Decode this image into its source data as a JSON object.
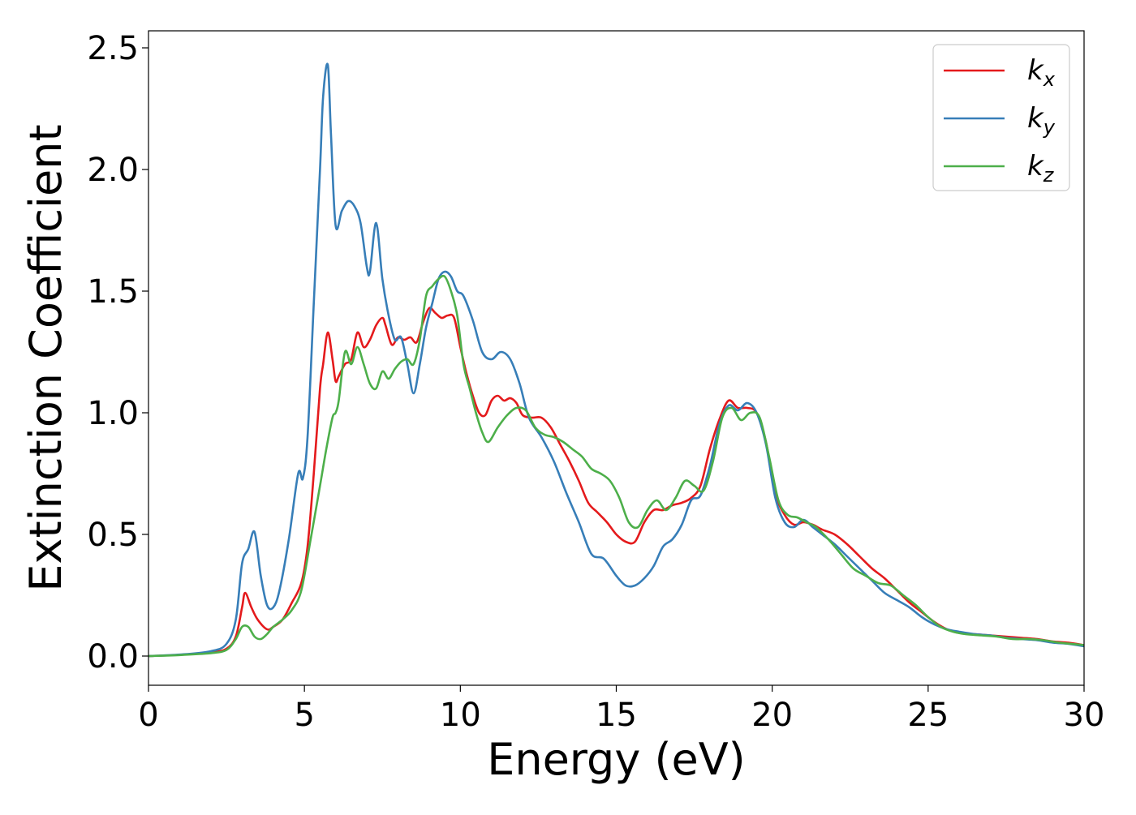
{
  "chart_data": {
    "type": "line",
    "title": "",
    "xlabel": "Energy (eV)",
    "ylabel": "Extinction Coefficient",
    "xlim": [
      0,
      30
    ],
    "ylim": [
      -0.12,
      2.57
    ],
    "xticks": [
      0,
      5,
      10,
      15,
      20,
      25,
      30
    ],
    "xtick_labels": [
      "0",
      "5",
      "10",
      "15",
      "20",
      "25",
      "30"
    ],
    "yticks": [
      0.0,
      0.5,
      1.0,
      1.5,
      2.0,
      2.5
    ],
    "ytick_labels": [
      "0.0",
      "0.5",
      "1.0",
      "1.5",
      "2.0",
      "2.5"
    ],
    "grid": false,
    "legend_position": "top-right",
    "series": [
      {
        "name": "k",
        "name_sub": "x",
        "color": "#e41a1c",
        "x": [
          0,
          1,
          2,
          2.5,
          2.8,
          3.0,
          3.1,
          3.3,
          3.5,
          3.8,
          4.0,
          4.3,
          4.6,
          4.9,
          5.1,
          5.3,
          5.5,
          5.6,
          5.75,
          5.9,
          6.0,
          6.1,
          6.3,
          6.5,
          6.7,
          6.9,
          7.1,
          7.3,
          7.5,
          7.6,
          7.8,
          8.0,
          8.2,
          8.4,
          8.6,
          8.8,
          9.0,
          9.2,
          9.4,
          9.6,
          9.8,
          10.0,
          10.2,
          10.4,
          10.6,
          10.8,
          11.0,
          11.2,
          11.4,
          11.6,
          11.8,
          12.0,
          12.3,
          12.6,
          12.9,
          13.2,
          13.5,
          13.8,
          14.1,
          14.4,
          14.7,
          15.0,
          15.3,
          15.6,
          15.9,
          16.2,
          16.5,
          16.8,
          17.1,
          17.4,
          17.7,
          18.0,
          18.3,
          18.6,
          18.9,
          19.2,
          19.5,
          19.8,
          20.1,
          20.4,
          20.7,
          21.0,
          21.3,
          21.6,
          22.0,
          22.4,
          22.8,
          23.2,
          23.6,
          24.0,
          24.4,
          24.8,
          25.2,
          25.6,
          26.0,
          26.5,
          27.0,
          27.5,
          28.0,
          28.5,
          29.0,
          29.5,
          30.0
        ],
        "y": [
          0.0,
          0.005,
          0.015,
          0.03,
          0.08,
          0.2,
          0.26,
          0.2,
          0.15,
          0.11,
          0.12,
          0.15,
          0.22,
          0.3,
          0.45,
          0.75,
          1.1,
          1.2,
          1.33,
          1.22,
          1.13,
          1.15,
          1.2,
          1.22,
          1.33,
          1.27,
          1.3,
          1.36,
          1.39,
          1.36,
          1.28,
          1.31,
          1.3,
          1.31,
          1.29,
          1.37,
          1.43,
          1.41,
          1.39,
          1.4,
          1.39,
          1.27,
          1.16,
          1.07,
          1.0,
          0.99,
          1.05,
          1.07,
          1.05,
          1.06,
          1.04,
          0.99,
          0.98,
          0.98,
          0.94,
          0.87,
          0.8,
          0.72,
          0.63,
          0.59,
          0.55,
          0.5,
          0.47,
          0.47,
          0.55,
          0.6,
          0.6,
          0.62,
          0.63,
          0.65,
          0.7,
          0.85,
          0.97,
          1.05,
          1.02,
          1.02,
          1.0,
          0.88,
          0.67,
          0.58,
          0.54,
          0.55,
          0.54,
          0.52,
          0.5,
          0.46,
          0.41,
          0.36,
          0.32,
          0.27,
          0.22,
          0.18,
          0.14,
          0.11,
          0.095,
          0.09,
          0.085,
          0.08,
          0.075,
          0.07,
          0.06,
          0.055,
          0.045
        ]
      },
      {
        "name": "k",
        "name_sub": "y",
        "color": "#377eb8",
        "x": [
          0,
          1,
          2,
          2.5,
          2.8,
          3.0,
          3.2,
          3.4,
          3.6,
          3.8,
          4.0,
          4.2,
          4.5,
          4.8,
          4.95,
          5.1,
          5.3,
          5.5,
          5.6,
          5.75,
          5.85,
          6.0,
          6.2,
          6.4,
          6.6,
          6.8,
          7.0,
          7.1,
          7.3,
          7.5,
          7.7,
          7.9,
          8.1,
          8.3,
          8.5,
          8.7,
          8.9,
          9.1,
          9.3,
          9.5,
          9.7,
          9.9,
          10.1,
          10.4,
          10.7,
          11.0,
          11.3,
          11.6,
          11.9,
          12.2,
          12.6,
          13.0,
          13.4,
          13.8,
          14.2,
          14.6,
          15.0,
          15.3,
          15.6,
          15.9,
          16.2,
          16.5,
          16.8,
          17.1,
          17.4,
          17.7,
          18.0,
          18.3,
          18.6,
          18.9,
          19.2,
          19.5,
          19.8,
          20.1,
          20.4,
          20.7,
          21.0,
          21.3,
          21.6,
          22.0,
          22.4,
          22.8,
          23.2,
          23.6,
          24.0,
          24.4,
          24.8,
          25.2,
          25.6,
          26.0,
          26.5,
          27.0,
          27.5,
          28.0,
          28.5,
          29.0,
          29.5,
          30.0
        ],
        "y": [
          0.0,
          0.006,
          0.02,
          0.05,
          0.15,
          0.38,
          0.44,
          0.51,
          0.33,
          0.21,
          0.2,
          0.27,
          0.48,
          0.75,
          0.73,
          0.9,
          1.45,
          2.0,
          2.3,
          2.43,
          2.15,
          1.77,
          1.83,
          1.87,
          1.85,
          1.78,
          1.6,
          1.58,
          1.78,
          1.55,
          1.4,
          1.3,
          1.31,
          1.2,
          1.08,
          1.2,
          1.35,
          1.45,
          1.55,
          1.58,
          1.56,
          1.5,
          1.48,
          1.38,
          1.25,
          1.22,
          1.25,
          1.22,
          1.12,
          0.98,
          0.9,
          0.8,
          0.67,
          0.55,
          0.42,
          0.4,
          0.33,
          0.29,
          0.29,
          0.32,
          0.37,
          0.45,
          0.48,
          0.54,
          0.64,
          0.66,
          0.78,
          0.95,
          1.03,
          1.01,
          1.04,
          1.0,
          0.87,
          0.65,
          0.55,
          0.53,
          0.56,
          0.53,
          0.5,
          0.46,
          0.41,
          0.36,
          0.31,
          0.26,
          0.23,
          0.2,
          0.16,
          0.13,
          0.11,
          0.1,
          0.09,
          0.085,
          0.075,
          0.07,
          0.065,
          0.055,
          0.05,
          0.04
        ]
      },
      {
        "name": "k",
        "name_sub": "z",
        "color": "#4daf4a",
        "x": [
          0,
          1,
          2,
          2.5,
          2.8,
          3.0,
          3.2,
          3.4,
          3.6,
          3.8,
          4.0,
          4.3,
          4.6,
          4.9,
          5.2,
          5.5,
          5.7,
          5.9,
          6.0,
          6.1,
          6.3,
          6.5,
          6.7,
          6.9,
          7.1,
          7.3,
          7.5,
          7.7,
          7.9,
          8.1,
          8.3,
          8.5,
          8.7,
          8.9,
          9.1,
          9.3,
          9.5,
          9.7,
          9.9,
          10.1,
          10.3,
          10.5,
          10.7,
          10.9,
          11.2,
          11.5,
          11.8,
          12.1,
          12.4,
          12.7,
          13.0,
          13.3,
          13.6,
          13.9,
          14.2,
          14.5,
          14.8,
          15.1,
          15.4,
          15.7,
          16.0,
          16.3,
          16.6,
          16.9,
          17.2,
          17.5,
          17.8,
          18.1,
          18.4,
          18.7,
          19.0,
          19.3,
          19.6,
          19.9,
          20.2,
          20.5,
          20.8,
          21.1,
          21.4,
          21.8,
          22.2,
          22.6,
          23.0,
          23.4,
          23.8,
          24.2,
          24.6,
          25.0,
          25.4,
          25.8,
          26.2,
          26.7,
          27.2,
          27.7,
          28.2,
          28.7,
          29.2,
          29.6,
          30.0
        ],
        "y": [
          0.0,
          0.004,
          0.012,
          0.025,
          0.07,
          0.12,
          0.12,
          0.08,
          0.07,
          0.09,
          0.12,
          0.15,
          0.19,
          0.27,
          0.48,
          0.7,
          0.85,
          0.98,
          1.0,
          1.05,
          1.25,
          1.2,
          1.27,
          1.2,
          1.12,
          1.1,
          1.17,
          1.14,
          1.18,
          1.21,
          1.22,
          1.2,
          1.3,
          1.48,
          1.52,
          1.55,
          1.56,
          1.5,
          1.4,
          1.2,
          1.1,
          1.0,
          0.92,
          0.88,
          0.94,
          0.99,
          1.02,
          1.01,
          0.94,
          0.91,
          0.9,
          0.88,
          0.85,
          0.82,
          0.77,
          0.75,
          0.72,
          0.65,
          0.55,
          0.53,
          0.6,
          0.64,
          0.6,
          0.65,
          0.72,
          0.7,
          0.68,
          0.8,
          0.98,
          1.02,
          0.97,
          1.0,
          0.98,
          0.82,
          0.64,
          0.58,
          0.57,
          0.55,
          0.53,
          0.48,
          0.42,
          0.36,
          0.33,
          0.3,
          0.29,
          0.25,
          0.21,
          0.16,
          0.12,
          0.1,
          0.09,
          0.085,
          0.08,
          0.07,
          0.07,
          0.065,
          0.055,
          0.05,
          0.045
        ]
      }
    ]
  }
}
